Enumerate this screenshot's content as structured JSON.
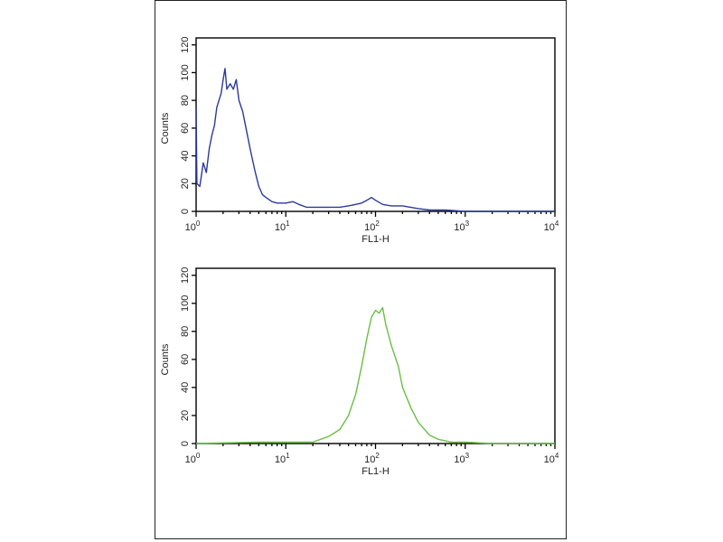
{
  "chart_data": [
    {
      "type": "line",
      "xlabel": "FL1-H",
      "ylabel": "Counts",
      "xscale": "log",
      "xlim": [
        1,
        10000
      ],
      "ylim": [
        0,
        125
      ],
      "xticks": [
        "10^0",
        "10^1",
        "10^2",
        "10^3",
        "10^4"
      ],
      "yticks": [
        0,
        20,
        40,
        60,
        80,
        100,
        120
      ],
      "grid": false,
      "color": "#2b3a9a",
      "x": [
        1.0,
        1.02,
        1.1,
        1.2,
        1.3,
        1.4,
        1.5,
        1.6,
        1.7,
        1.8,
        1.9,
        2.0,
        2.1,
        2.2,
        2.4,
        2.6,
        2.8,
        3.0,
        3.3,
        3.6,
        4.0,
        4.5,
        5.0,
        5.5,
        6,
        7,
        8,
        10,
        12,
        14,
        17,
        20,
        30,
        40,
        50,
        60,
        70,
        80,
        90,
        100,
        120,
        150,
        200,
        300,
        400,
        600,
        1000,
        10000
      ],
      "y": [
        75,
        20,
        18,
        35,
        28,
        45,
        55,
        62,
        75,
        80,
        85,
        95,
        103,
        88,
        92,
        88,
        95,
        80,
        72,
        60,
        45,
        30,
        18,
        12,
        10,
        7,
        6,
        6,
        7,
        5,
        3,
        3,
        3,
        3,
        4,
        5,
        6,
        8,
        10,
        8,
        5,
        4,
        4,
        2,
        1,
        1,
        0,
        0
      ]
    },
    {
      "type": "line",
      "xlabel": "FL1-H",
      "ylabel": "Counts",
      "xscale": "log",
      "xlim": [
        1,
        10000
      ],
      "ylim": [
        0,
        125
      ],
      "xticks": [
        "10^0",
        "10^1",
        "10^2",
        "10^3",
        "10^4"
      ],
      "yticks": [
        0,
        20,
        40,
        60,
        80,
        100,
        120
      ],
      "grid": false,
      "color": "#6abf45",
      "x": [
        1,
        5,
        10,
        20,
        30,
        40,
        50,
        60,
        70,
        80,
        90,
        100,
        110,
        120,
        130,
        150,
        180,
        200,
        250,
        300,
        400,
        500,
        700,
        1000,
        2000,
        10000
      ],
      "y": [
        0,
        1,
        1,
        1,
        5,
        10,
        20,
        35,
        55,
        75,
        90,
        95,
        93,
        97,
        85,
        70,
        55,
        40,
        25,
        15,
        6,
        3,
        1,
        1,
        0,
        0
      ]
    }
  ]
}
